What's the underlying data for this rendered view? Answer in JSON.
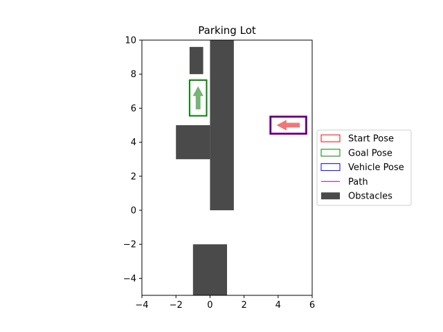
{
  "chart_data": {
    "type": "scatter",
    "title": "Parking Lot",
    "xlabel": "",
    "ylabel": "",
    "xlim": [
      -4,
      6
    ],
    "ylim": [
      -5,
      10
    ],
    "x_ticks": [
      -4,
      -2,
      0,
      2,
      4,
      6
    ],
    "y_ticks": [
      -4,
      -2,
      0,
      2,
      4,
      6,
      8,
      10
    ],
    "grid": false,
    "legend_position": "right",
    "obstacles": [
      {
        "x0": 0.0,
        "y0": 0.0,
        "x1": 1.4,
        "y1": 10.0
      },
      {
        "x0": -2.0,
        "y0": 3.0,
        "x1": 0.0,
        "y1": 5.0
      },
      {
        "x0": -1.2,
        "y0": 8.0,
        "x1": -0.4,
        "y1": 9.6
      },
      {
        "x0": -1.0,
        "y0": -5.0,
        "x1": 1.0,
        "y1": -2.0
      }
    ],
    "start_pose": {
      "x": 4.6,
      "y": 5.0,
      "width": 2.1,
      "height": 1.0,
      "heading_deg": 180
    },
    "goal_pose": {
      "x": -0.7,
      "y": 6.6,
      "width": 1.0,
      "height": 2.1,
      "heading_deg": 90
    },
    "vehicle_pose": {
      "x": 4.6,
      "y": 5.0,
      "width": 2.1,
      "height": 1.0,
      "heading_deg": 180
    },
    "path": [],
    "colors": {
      "start": "#ff0000",
      "goal": "#008000",
      "vehicle": "#0000ff",
      "path": "#bf00bf",
      "obstacles": "#4a4a4a",
      "start_arrow": "#f07070",
      "goal_arrow": "#70b070"
    },
    "legend": [
      {
        "key": "start",
        "label": "Start Pose",
        "kind": "box"
      },
      {
        "key": "goal",
        "label": "Goal Pose",
        "kind": "box"
      },
      {
        "key": "vehicle",
        "label": "Vehicle Pose",
        "kind": "box"
      },
      {
        "key": "path",
        "label": "Path",
        "kind": "line"
      },
      {
        "key": "obstacles",
        "label": "Obstacles",
        "kind": "fill"
      }
    ]
  }
}
